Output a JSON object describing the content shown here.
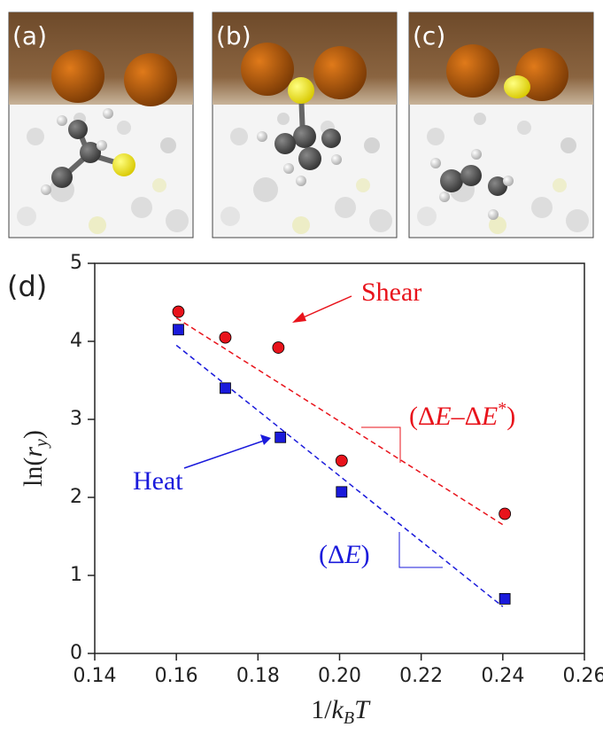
{
  "panels": [
    {
      "label": "(a)"
    },
    {
      "label": "(b)"
    },
    {
      "label": "(c)"
    }
  ],
  "chart_data": {
    "type": "scatter",
    "label": "(d)",
    "x_label": [
      "1/",
      "k",
      "B",
      "T"
    ],
    "y_label": [
      "ln(",
      "r",
      "y",
      ")"
    ],
    "xlim": [
      0.14,
      0.26
    ],
    "ylim": [
      0,
      5
    ],
    "xticks": [
      0.14,
      0.16,
      0.18,
      {
        "value": 0.2,
        "label": "0.20"
      },
      0.22,
      0.24,
      0.26
    ],
    "yticks": [
      0,
      1,
      2,
      3,
      4,
      5
    ],
    "series": [
      {
        "name": "Shear",
        "color": "#e8131b",
        "marker": "circle",
        "x": [
          0.1605,
          0.172,
          0.185,
          0.2005,
          0.2405
        ],
        "values": [
          4.38,
          4.05,
          3.92,
          2.47,
          1.79
        ],
        "fit": {
          "x": [
            0.16,
            0.24
          ],
          "values": [
            4.3,
            1.65
          ]
        },
        "slope_label": [
          "(Δ",
          "E",
          "–Δ",
          "E",
          "*",
          ")"
        ]
      },
      {
        "name": "Heat",
        "color": "#1a1adb",
        "marker": "square",
        "x": [
          0.1605,
          0.172,
          0.1855,
          0.2005,
          0.2405
        ],
        "values": [
          4.15,
          3.4,
          2.77,
          2.07,
          0.7
        ],
        "fit": {
          "x": [
            0.16,
            0.24
          ],
          "values": [
            3.95,
            0.6
          ]
        },
        "slope_label": [
          "(Δ",
          "E",
          ")"
        ]
      }
    ]
  }
}
